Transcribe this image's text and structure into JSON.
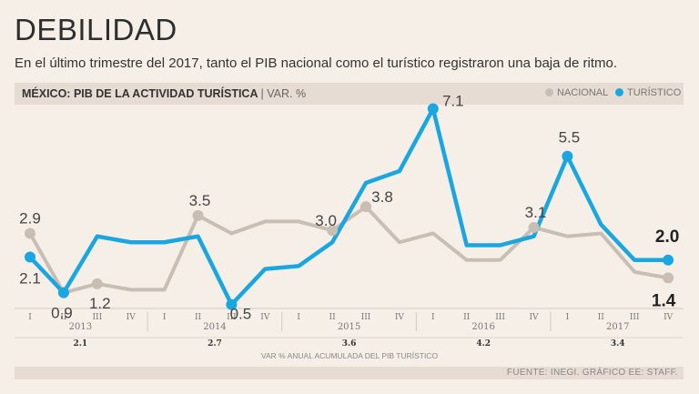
{
  "header": {
    "title": "DEBILIDAD",
    "subtitle": "En el último trimestre del 2017, tanto el PIB nacional como el turístico registraron una baja de ritmo."
  },
  "chart_header": {
    "title": "MÉXICO: PIB DE LA ACTIVIDAD TURÍSTICA",
    "unit": "| VAR. %"
  },
  "legend": {
    "nacional": "NACIONAL",
    "turistico": "TURÍSTICO"
  },
  "colors": {
    "nacional": "#c8beb4",
    "turistico": "#1aa7e0"
  },
  "chart_data": {
    "type": "line",
    "title": "MÉXICO: PIB DE LA ACTIVIDAD TURÍSTICA",
    "ylabel": "VAR. %",
    "ylim": [
      0,
      7.7
    ],
    "x": [
      "2013-I",
      "2013-II",
      "2013-III",
      "2013-IV",
      "2014-I",
      "2014-II",
      "2014-III",
      "2014-IV",
      "2015-I",
      "2015-II",
      "2015-III",
      "2015-IV",
      "2016-I",
      "2016-II",
      "2016-III",
      "2016-IV",
      "2017-I",
      "2017-II",
      "2017-III",
      "2017-IV"
    ],
    "quarters": [
      "I",
      "II",
      "III",
      "IV",
      "I",
      "II",
      "III",
      "IV",
      "I",
      "II",
      "III",
      "IV",
      "I",
      "II",
      "III",
      "IV",
      "I",
      "II",
      "III",
      "IV"
    ],
    "years": [
      "2013",
      "2014",
      "2015",
      "2016",
      "2017"
    ],
    "annual": [
      "2.1",
      "2.7",
      "3.6",
      "4.2",
      "3.4"
    ],
    "annual_note": "VAR % ANUAL ACUMULADA DEL PIB TURÍSTICO",
    "series": [
      {
        "name": "NACIONAL",
        "values": [
          2.9,
          0.9,
          1.2,
          1.0,
          1.0,
          3.5,
          2.9,
          3.3,
          3.3,
          3.0,
          3.8,
          2.6,
          2.9,
          2.0,
          2.0,
          3.1,
          2.8,
          2.9,
          1.6,
          1.4
        ]
      },
      {
        "name": "TURÍSTICO",
        "values": [
          2.1,
          0.9,
          2.8,
          2.6,
          2.6,
          2.8,
          0.5,
          1.7,
          1.8,
          2.6,
          4.6,
          5.0,
          7.1,
          2.5,
          2.5,
          2.8,
          5.5,
          3.2,
          2.0,
          2.0
        ]
      }
    ],
    "annotations": [
      {
        "text": "2.9",
        "series": "NACIONAL",
        "x": "2013-I"
      },
      {
        "text": "2.1",
        "series": "TURÍSTICO",
        "x": "2013-I"
      },
      {
        "text": "0.9",
        "series": "TURÍSTICO",
        "x": "2013-II"
      },
      {
        "text": "1.2",
        "series": "NACIONAL",
        "x": "2013-III"
      },
      {
        "text": "3.5",
        "series": "NACIONAL",
        "x": "2014-II"
      },
      {
        "text": "0.5",
        "series": "TURÍSTICO",
        "x": "2014-III"
      },
      {
        "text": "3.0",
        "series": "NACIONAL",
        "x": "2015-II"
      },
      {
        "text": "3.8",
        "series": "NACIONAL",
        "x": "2015-III"
      },
      {
        "text": "7.1",
        "series": "TURÍSTICO",
        "x": "2016-I"
      },
      {
        "text": "3.1",
        "series": "NACIONAL",
        "x": "2016-IV"
      },
      {
        "text": "5.5",
        "series": "TURÍSTICO",
        "x": "2017-I"
      },
      {
        "text": "2.0",
        "series": "TURÍSTICO",
        "x": "2017-IV",
        "bold": true
      },
      {
        "text": "1.4",
        "series": "NACIONAL",
        "x": "2017-IV",
        "bold": true
      }
    ],
    "markers": {
      "NACIONAL": [
        "2013-I",
        "2013-II",
        "2013-III",
        "2014-II",
        "2015-II",
        "2015-III",
        "2016-IV",
        "2017-IV"
      ],
      "TURÍSTICO": [
        "2013-I",
        "2013-II",
        "2014-III",
        "2016-I",
        "2017-I",
        "2017-IV"
      ]
    }
  },
  "footer": {
    "source": "FUENTE: INEGI. GRÁFICO EE: STAFF."
  }
}
